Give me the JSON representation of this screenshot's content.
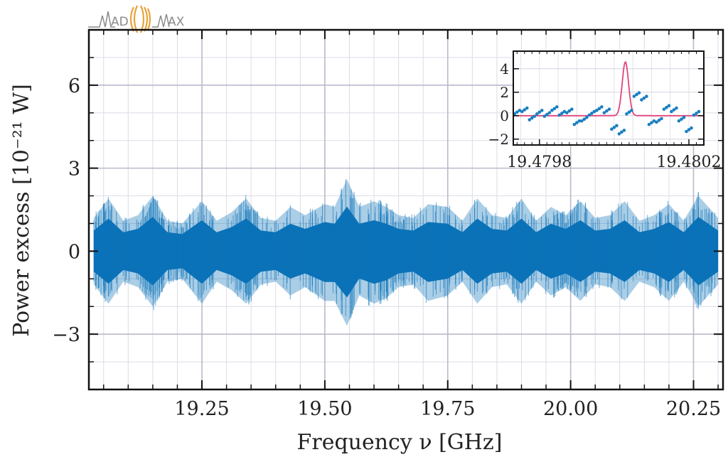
{
  "logo": {
    "text_left": "AD",
    "text_right": "AX",
    "wave_color": "#e8a23a",
    "line_color": "#8a8a8a"
  },
  "chart_data": [
    {
      "type": "line",
      "name": "main",
      "xlabel": "Frequency ν [GHz]",
      "ylabel": "Power excess [10⁻²¹ W]",
      "xlim": [
        19.02,
        20.31
      ],
      "ylim": [
        -5,
        8
      ],
      "xticks": [
        19.25,
        19.5,
        19.75,
        20.0,
        20.25
      ],
      "xtick_labels": [
        "19.25",
        "19.50",
        "19.75",
        "20.00",
        "20.25"
      ],
      "yticks": [
        -3,
        0,
        3,
        6
      ],
      "ytick_labels": [
        "−3",
        "0",
        "3",
        "6"
      ],
      "grid": true,
      "series_color": "#0b72b8",
      "envelope": {
        "x": [
          19.03,
          19.06,
          19.09,
          19.12,
          19.15,
          19.18,
          19.21,
          19.25,
          19.28,
          19.31,
          19.34,
          19.37,
          19.4,
          19.43,
          19.46,
          19.5,
          19.52,
          19.545,
          19.57,
          19.6,
          19.625,
          19.65,
          19.68,
          19.71,
          19.75,
          19.78,
          19.81,
          19.84,
          19.87,
          19.9,
          19.93,
          19.96,
          19.99,
          20.02,
          20.05,
          20.08,
          20.11,
          20.14,
          20.17,
          20.2,
          20.23,
          20.26,
          20.3
        ],
        "upper": [
          1.2,
          1.9,
          1.1,
          1.3,
          2.0,
          1.1,
          1.0,
          1.8,
          1.1,
          1.4,
          1.9,
          1.2,
          1.1,
          1.6,
          1.3,
          1.7,
          1.6,
          2.6,
          1.6,
          1.8,
          1.6,
          1.3,
          1.2,
          1.7,
          1.6,
          1.1,
          1.9,
          1.3,
          1.2,
          1.9,
          1.1,
          1.6,
          1.3,
          1.8,
          1.2,
          1.3,
          1.8,
          1.1,
          1.3,
          1.7,
          1.1,
          2.0,
          1.2
        ],
        "lower": [
          -1.2,
          -1.9,
          -1.1,
          -1.3,
          -2.0,
          -1.1,
          -1.0,
          -1.9,
          -1.1,
          -1.4,
          -1.9,
          -1.2,
          -1.1,
          -1.6,
          -1.3,
          -1.8,
          -1.8,
          -2.7,
          -1.6,
          -1.9,
          -1.7,
          -1.3,
          -1.2,
          -1.8,
          -1.6,
          -1.1,
          -1.9,
          -1.3,
          -1.2,
          -1.9,
          -1.1,
          -1.6,
          -1.3,
          -1.8,
          -1.2,
          -1.3,
          -1.8,
          -1.1,
          -1.3,
          -1.8,
          -1.1,
          -2.0,
          -1.2
        ]
      }
    },
    {
      "type": "scatter",
      "name": "inset",
      "xlim": [
        19.47973,
        19.48024
      ],
      "ylim": [
        -2.5,
        5.5
      ],
      "xticks": [
        19.4798,
        19.4802
      ],
      "xtick_labels": [
        "19.4798",
        "19.4802"
      ],
      "yticks": [
        -2,
        0,
        2,
        4
      ],
      "ytick_labels": [
        "−2",
        "0",
        "2",
        "4"
      ],
      "grid": true,
      "points_color": "#1a7fc1",
      "fit_color": "#e0457b",
      "points": {
        "x": [
          19.47974,
          19.47976,
          19.47978,
          19.4798,
          19.47982,
          19.47984,
          19.47986,
          19.47988,
          19.4799,
          19.47992,
          19.47994,
          19.47996,
          19.47998,
          19.48,
          19.48002,
          19.48004,
          19.48006,
          19.48008,
          19.4801,
          19.48012,
          19.48014,
          19.48016,
          19.48018,
          19.4802,
          19.48022
        ],
        "y": [
          0.3,
          0.5,
          -0.2,
          0.3,
          0.1,
          0.6,
          0.2,
          0.4,
          -0.6,
          -0.3,
          0.2,
          0.6,
          0.4,
          -1.0,
          -1.4,
          0.3,
          1.8,
          1.5,
          -0.6,
          -0.4,
          0.7,
          0.5,
          -0.3,
          -1.2,
          0.2
        ]
      },
      "fit": {
        "center": 19.48003,
        "amplitude": 4.6,
        "width": 1.2e-05
      }
    }
  ]
}
